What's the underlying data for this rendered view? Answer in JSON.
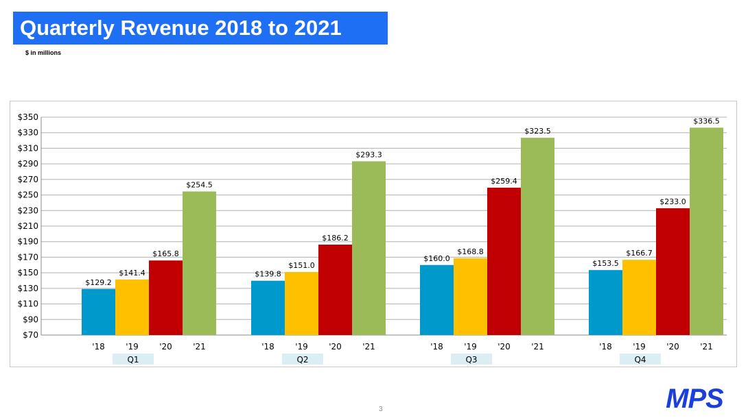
{
  "header": {
    "title": "Quarterly Revenue 2018 to 2021",
    "subtitle": "$ in millions"
  },
  "footer": {
    "page_number": "3",
    "logo_text": "MPS",
    "logo_color": "#1a3fdc"
  },
  "chart_data": {
    "type": "bar",
    "groups": [
      "Q1",
      "Q2",
      "Q3",
      "Q4"
    ],
    "categories": [
      "'18",
      "'19",
      "'20",
      "'21"
    ],
    "series": [
      {
        "name": "'18",
        "color": "#0099cc",
        "values": [
          129.2,
          139.8,
          160.0,
          153.5
        ],
        "labels": [
          "$129.2",
          "$139.8",
          "$160.0",
          "$153.5"
        ]
      },
      {
        "name": "'19",
        "color": "#ffc000",
        "values": [
          141.4,
          151.0,
          168.8,
          166.7
        ],
        "labels": [
          "$141.4",
          "$151.0",
          "$168.8",
          "$166.7"
        ]
      },
      {
        "name": "'20",
        "color": "#c00000",
        "values": [
          165.8,
          186.2,
          259.4,
          233.0
        ],
        "labels": [
          "$165.8",
          "$186.2",
          "$259.4",
          "$233.0"
        ]
      },
      {
        "name": "'21",
        "color": "#9bbb59",
        "values": [
          254.5,
          293.3,
          323.5,
          336.5
        ],
        "labels": [
          "$254.5",
          "$293.3",
          "$323.5",
          "$336.5"
        ]
      }
    ],
    "yticks": [
      "$70",
      "$90",
      "$110",
      "$130",
      "$150",
      "$170",
      "$190",
      "$210",
      "$230",
      "$250",
      "$270",
      "$290",
      "$310",
      "$330",
      "$350"
    ],
    "ylim": [
      70,
      350
    ],
    "grid": true,
    "group_label_color": "#daeef3"
  }
}
